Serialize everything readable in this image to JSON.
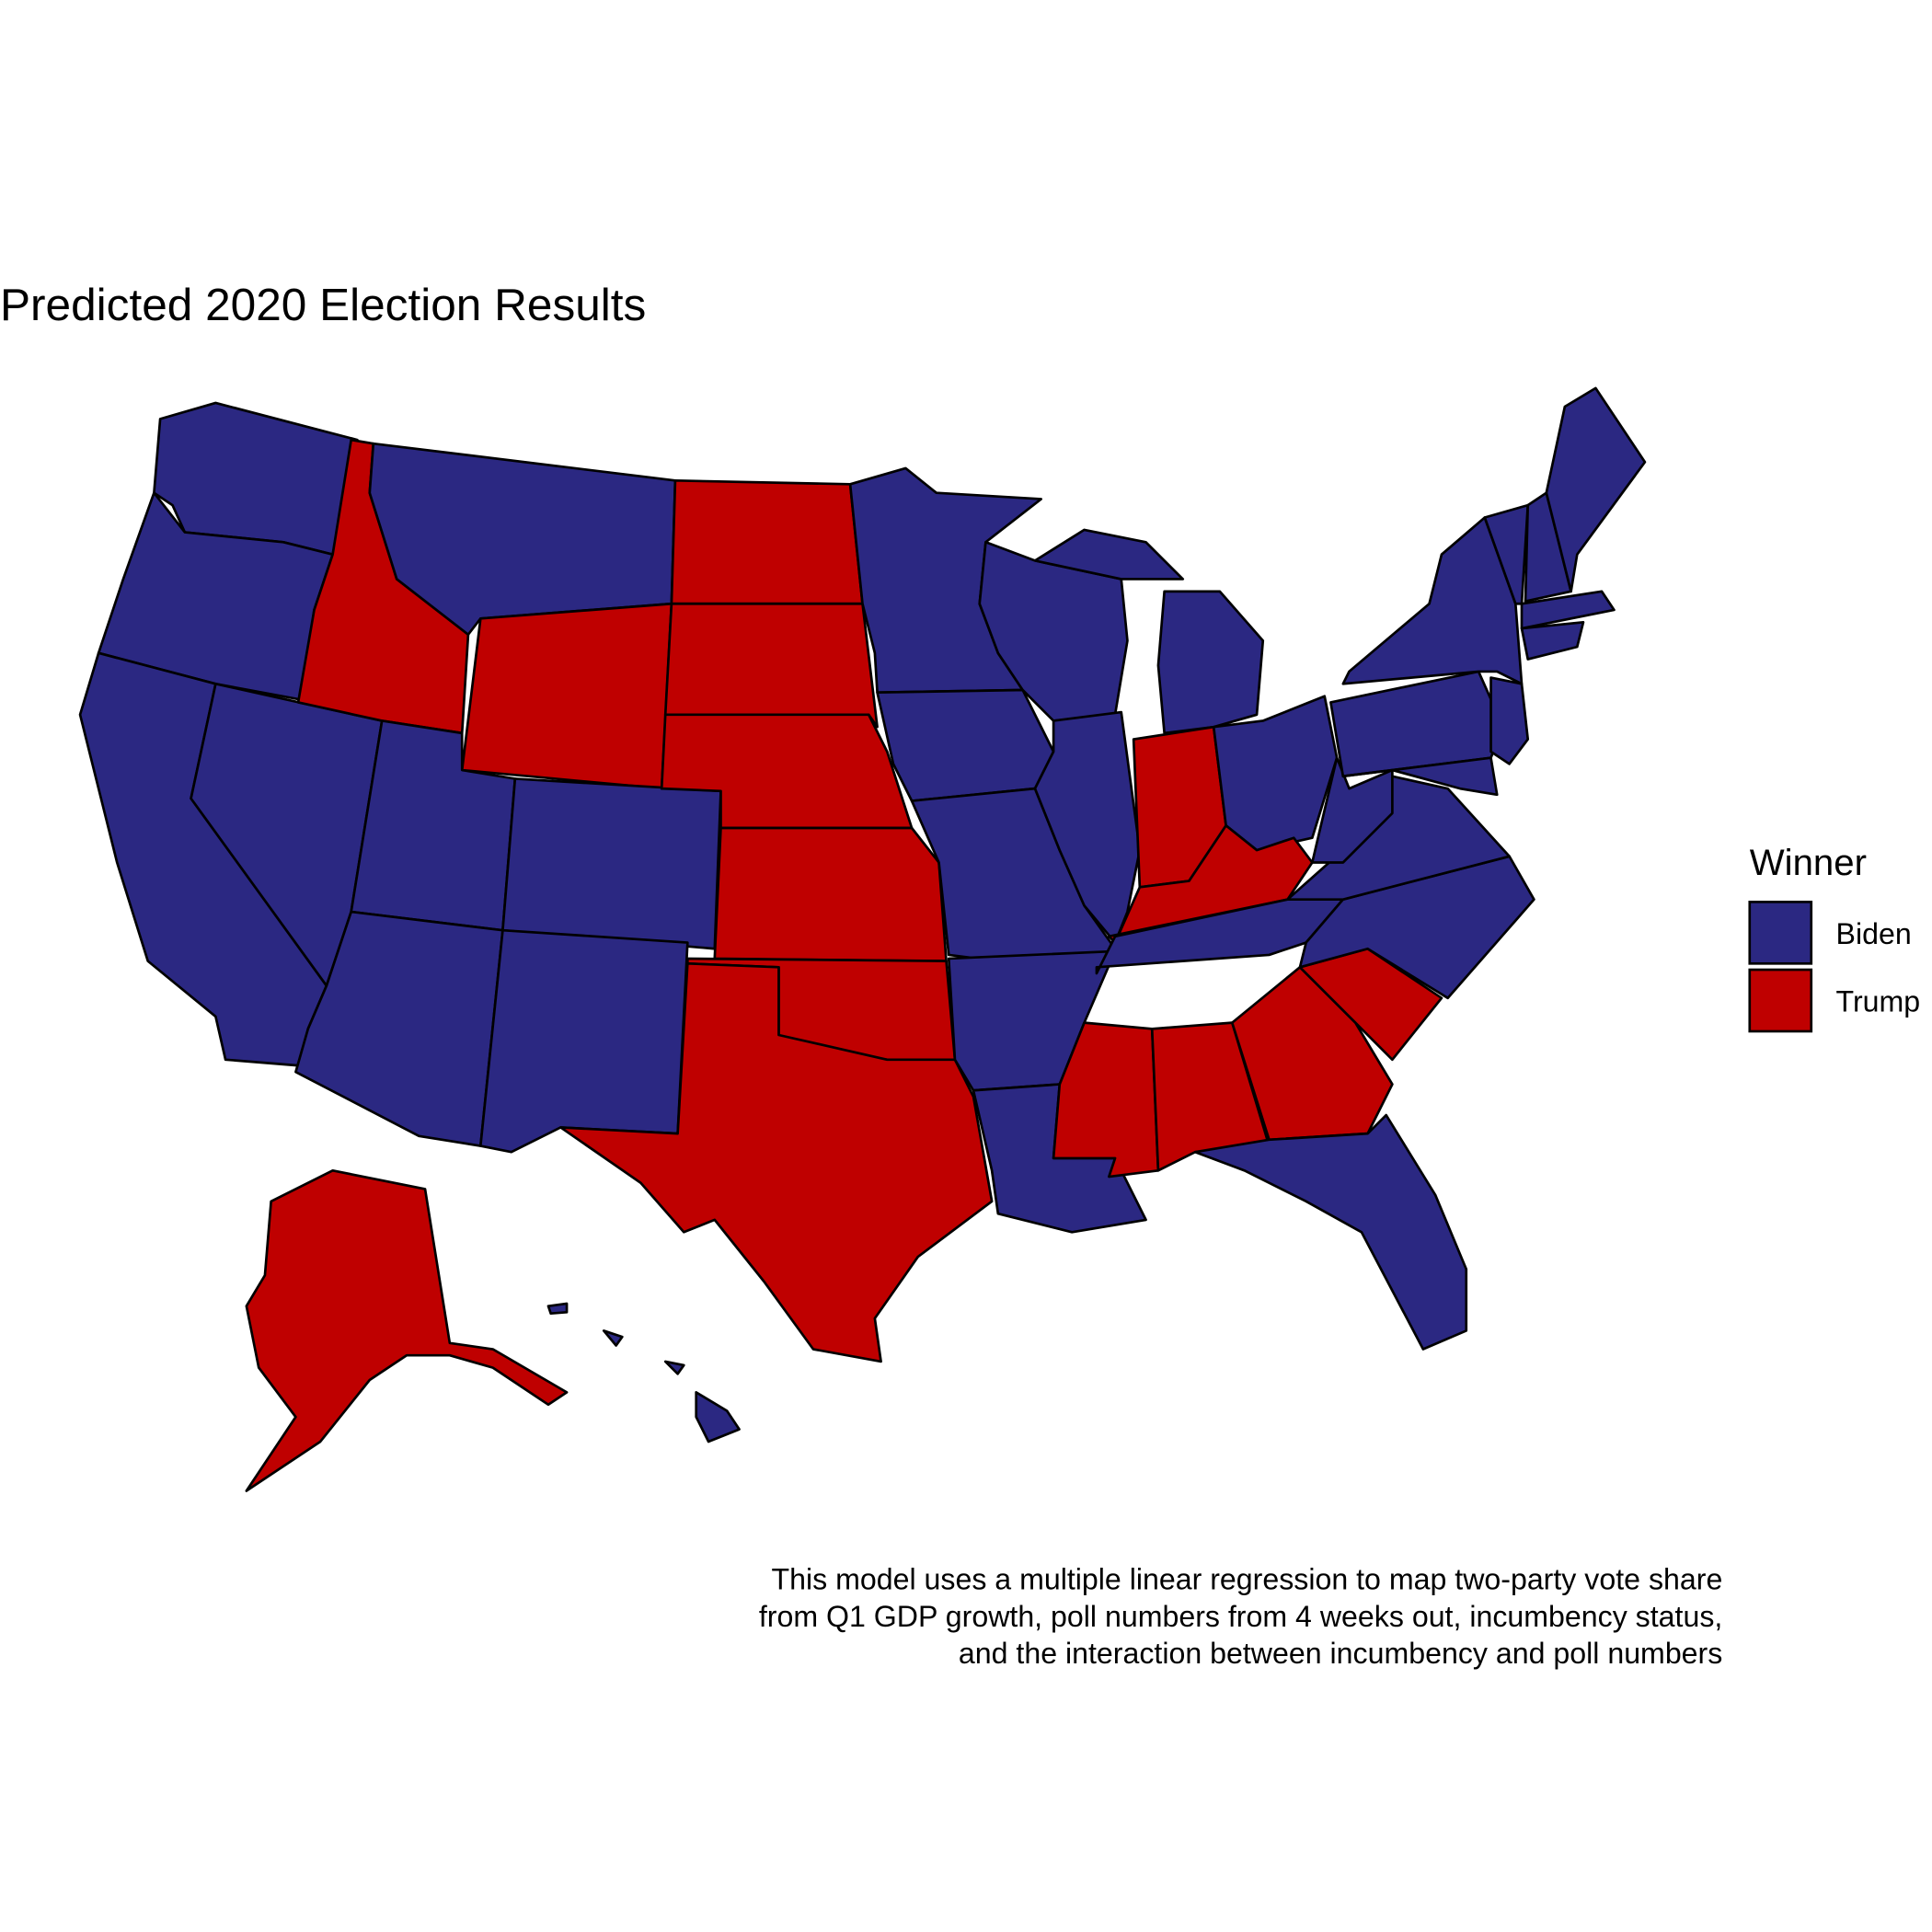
{
  "title": "Predicted 2020 Election Results",
  "legend": {
    "title": "Winner",
    "items": [
      {
        "label": "Biden",
        "color": "#2b2882"
      },
      {
        "label": "Trump",
        "color": "#bf0000"
      }
    ]
  },
  "caption": [
    "This model uses a multiple linear regression to map two-party vote share",
    "from Q1 GDP growth, poll numbers from 4 weeks out, incumbency status,",
    "and the interaction between incumbency and poll numbers"
  ]
}
